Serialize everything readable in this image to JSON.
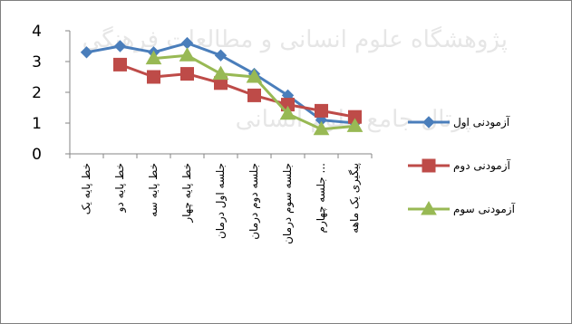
{
  "chart_data": {
    "type": "line",
    "categories": [
      "خط پایه یک",
      "خط پایه دو",
      "خط پایه سه",
      "خط پایه چهار",
      "جلسه اول درمان",
      "جلسه دوم درمان",
      "جلسه سوم درمان",
      "جلسه چهارم ...",
      "پیگیری یک ماهه"
    ],
    "ylim": [
      0,
      4
    ],
    "yticks": [
      0,
      1,
      2,
      3,
      4
    ],
    "grid": false,
    "legend_position": "right",
    "series": [
      {
        "name": "آزمودنی اول",
        "color": "#4a7ebb",
        "marker": "diamond",
        "values": [
          3.3,
          3.5,
          3.3,
          3.6,
          3.2,
          2.6,
          1.9,
          1.1,
          1.0
        ]
      },
      {
        "name": "آزمودنی دوم",
        "color": "#be4b48",
        "marker": "square",
        "values": [
          null,
          2.9,
          2.5,
          2.6,
          2.3,
          1.9,
          1.6,
          1.4,
          1.2
        ]
      },
      {
        "name": "آزمودنی سوم",
        "color": "#98b954",
        "marker": "triangle",
        "values": [
          null,
          null,
          3.1,
          3.2,
          2.6,
          2.5,
          1.3,
          0.8,
          0.9
        ]
      }
    ]
  },
  "watermark": {
    "line1": "پژوهشگاه علوم انسانی و مطالعات فرهنگی",
    "line2": "پرتال جامع علوم انسانی"
  }
}
